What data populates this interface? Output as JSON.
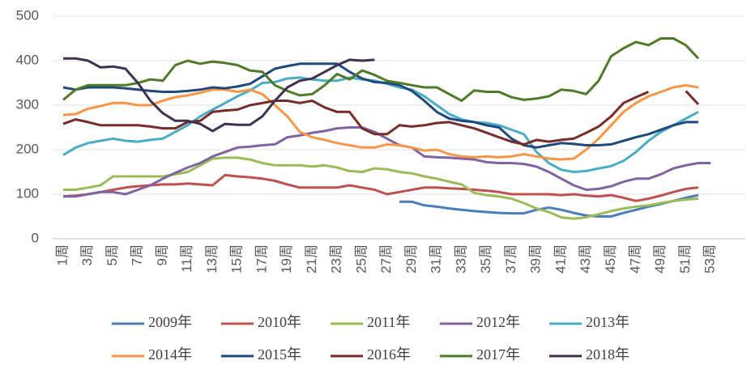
{
  "chart_data": {
    "type": "line",
    "categories": [
      "1周",
      null,
      "3周",
      null,
      "5周",
      null,
      "7周",
      null,
      "9周",
      null,
      "11周",
      null,
      "13周",
      null,
      "15周",
      null,
      "17周",
      null,
      "19周",
      null,
      "21周",
      null,
      "23周",
      null,
      "25周",
      null,
      "27周",
      null,
      "29周",
      null,
      "31周",
      null,
      "33周",
      null,
      "35周",
      null,
      "37周",
      null,
      "39周",
      null,
      "41周",
      null,
      "43周",
      null,
      "45周",
      null,
      "47周",
      null,
      "49周",
      null,
      "51周",
      null,
      "53周"
    ],
    "ylim": [
      0,
      500
    ],
    "yticks": [
      0,
      100,
      200,
      300,
      400,
      500
    ],
    "grid": true,
    "series": [
      {
        "name": "2009年",
        "color": "#4a7ebb",
        "values": [
          null,
          null,
          null,
          null,
          null,
          null,
          null,
          null,
          null,
          null,
          null,
          null,
          null,
          null,
          null,
          null,
          null,
          null,
          null,
          null,
          null,
          null,
          null,
          null,
          null,
          null,
          null,
          83,
          83,
          75,
          72,
          68,
          65,
          62,
          60,
          58,
          57,
          57,
          65,
          70,
          65,
          58,
          52,
          50,
          50,
          58,
          65,
          72,
          78,
          85,
          92,
          98,
          null
        ]
      },
      {
        "name": "2010年",
        "color": "#c0504d",
        "values": [
          95,
          97,
          100,
          105,
          110,
          115,
          118,
          120,
          122,
          122,
          124,
          122,
          120,
          143,
          140,
          138,
          135,
          130,
          122,
          115,
          115,
          115,
          115,
          120,
          115,
          110,
          100,
          105,
          110,
          115,
          115,
          113,
          112,
          110,
          108,
          105,
          100,
          100,
          100,
          100,
          98,
          100,
          97,
          95,
          98,
          92,
          85,
          90,
          97,
          105,
          112,
          115,
          null
        ]
      },
      {
        "name": "2011年",
        "color": "#9bbb59",
        "values": [
          110,
          110,
          115,
          120,
          140,
          140,
          140,
          140,
          140,
          145,
          150,
          165,
          180,
          182,
          182,
          178,
          170,
          165,
          165,
          165,
          162,
          165,
          160,
          152,
          150,
          158,
          156,
          150,
          147,
          140,
          135,
          128,
          122,
          103,
          98,
          95,
          90,
          80,
          68,
          60,
          48,
          45,
          48,
          55,
          62,
          68,
          72,
          75,
          80,
          85,
          88,
          90,
          null
        ]
      },
      {
        "name": "2012年",
        "color": "#8064a2",
        "values": [
          95,
          95,
          100,
          105,
          105,
          100,
          110,
          120,
          135,
          148,
          160,
          170,
          185,
          195,
          205,
          207,
          210,
          212,
          228,
          232,
          238,
          242,
          248,
          250,
          250,
          240,
          225,
          210,
          205,
          185,
          183,
          182,
          180,
          178,
          172,
          170,
          170,
          168,
          162,
          150,
          135,
          120,
          110,
          112,
          118,
          128,
          135,
          135,
          145,
          158,
          165,
          170,
          170
        ]
      },
      {
        "name": "2013年",
        "color": "#4bacc6",
        "values": [
          188,
          205,
          215,
          220,
          225,
          220,
          218,
          222,
          225,
          240,
          255,
          275,
          290,
          305,
          320,
          333,
          350,
          352,
          360,
          362,
          358,
          355,
          355,
          362,
          358,
          355,
          348,
          340,
          335,
          320,
          300,
          280,
          268,
          262,
          260,
          255,
          245,
          235,
          195,
          170,
          155,
          150,
          152,
          158,
          163,
          175,
          195,
          220,
          240,
          255,
          270,
          285,
          null
        ]
      },
      {
        "name": "2014年",
        "color": "#f79646",
        "values": [
          278,
          280,
          292,
          298,
          305,
          305,
          300,
          300,
          310,
          318,
          322,
          328,
          335,
          335,
          330,
          335,
          325,
          300,
          275,
          240,
          228,
          222,
          215,
          210,
          205,
          205,
          212,
          210,
          205,
          198,
          200,
          190,
          185,
          183,
          185,
          183,
          185,
          190,
          185,
          180,
          178,
          180,
          200,
          225,
          255,
          285,
          305,
          320,
          330,
          340,
          345,
          340,
          null
        ]
      },
      {
        "name": "2015年",
        "color": "#1f497d",
        "values": [
          340,
          335,
          340,
          340,
          340,
          338,
          335,
          332,
          330,
          330,
          332,
          335,
          340,
          338,
          342,
          348,
          365,
          382,
          388,
          393,
          393,
          393,
          393,
          375,
          360,
          352,
          350,
          345,
          332,
          310,
          285,
          270,
          265,
          262,
          255,
          250,
          225,
          210,
          205,
          210,
          215,
          213,
          210,
          210,
          212,
          220,
          228,
          235,
          245,
          255,
          262,
          262,
          null
        ]
      },
      {
        "name": "2016年",
        "color": "#772c2a",
        "values": [
          258,
          268,
          262,
          255,
          255,
          255,
          255,
          252,
          248,
          248,
          262,
          265,
          285,
          288,
          290,
          300,
          305,
          310,
          310,
          305,
          310,
          295,
          285,
          285,
          248,
          235,
          235,
          255,
          252,
          255,
          260,
          262,
          255,
          248,
          238,
          228,
          218,
          212,
          222,
          218,
          222,
          225,
          238,
          252,
          275,
          305,
          318,
          330,
          null,
          null,
          332,
          302,
          null
        ]
      },
      {
        "name": "2017年",
        "color": "#4f7a28",
        "values": [
          312,
          335,
          345,
          345,
          345,
          345,
          350,
          358,
          355,
          390,
          400,
          393,
          398,
          395,
          390,
          378,
          375,
          345,
          332,
          322,
          325,
          345,
          370,
          358,
          378,
          368,
          355,
          350,
          345,
          340,
          340,
          325,
          310,
          333,
          330,
          330,
          318,
          312,
          315,
          320,
          335,
          332,
          325,
          355,
          410,
          428,
          442,
          435,
          450,
          450,
          435,
          405,
          null
        ]
      },
      {
        "name": "2018年",
        "color": "#403152",
        "values": [
          405,
          405,
          400,
          385,
          387,
          382,
          350,
          310,
          282,
          265,
          265,
          258,
          242,
          258,
          256,
          256,
          275,
          310,
          340,
          355,
          360,
          375,
          390,
          402,
          400,
          402,
          null,
          null,
          null,
          null,
          null,
          null,
          null,
          null,
          null,
          null,
          null,
          null,
          null,
          null,
          null,
          null,
          null,
          null,
          null,
          null,
          null,
          null,
          null,
          null,
          null,
          null,
          null
        ]
      }
    ]
  }
}
